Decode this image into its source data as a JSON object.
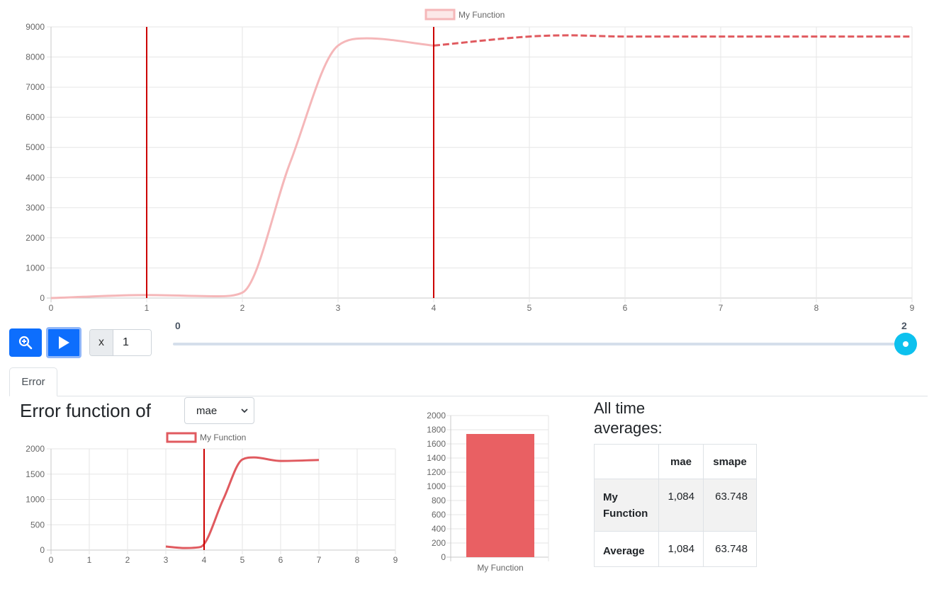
{
  "main_chart": {
    "legend": "My Function",
    "y_ticks": [
      "0",
      "1000",
      "2000",
      "3000",
      "4000",
      "5000",
      "6000",
      "7000",
      "8000",
      "9000"
    ],
    "x_ticks": [
      "0",
      "1",
      "2",
      "3",
      "4",
      "5",
      "6",
      "7",
      "8",
      "9"
    ],
    "colors": {
      "line": "#f5b7b9",
      "forecast": "#e05a5f",
      "marker": "#cc0000",
      "grid": "#e6e6e6"
    }
  },
  "controls": {
    "zoom_icon": "zoom-in-icon",
    "play_icon": "play-icon",
    "x_label": "x",
    "x_value": "1",
    "slider_min": "0",
    "slider_max": "2",
    "slider_value": 2
  },
  "tabs": [
    {
      "label": "Error",
      "active": true
    }
  ],
  "error_section": {
    "title": "Error function of",
    "select_value": "mae",
    "select_options": [
      "mae"
    ]
  },
  "error_chart": {
    "legend": "My Function",
    "y_ticks": [
      "0",
      "500",
      "1000",
      "1500",
      "2000"
    ],
    "x_ticks": [
      "0",
      "1",
      "2",
      "3",
      "4",
      "5",
      "6",
      "7",
      "8",
      "9"
    ]
  },
  "bar_chart": {
    "y_ticks": [
      "0",
      "200",
      "400",
      "600",
      "800",
      "1000",
      "1200",
      "1400",
      "1600",
      "1800",
      "2000"
    ],
    "category": "My Function"
  },
  "averages": {
    "title": "All time averages:",
    "headers": [
      "",
      "mae",
      "smape"
    ],
    "rows": [
      {
        "name": "My Function",
        "mae": "1,084",
        "smape": "63.748"
      },
      {
        "name": "Average",
        "mae": "1,084",
        "smape": "63.748"
      }
    ]
  },
  "chart_data": [
    {
      "type": "line",
      "title": "",
      "xlabel": "",
      "ylabel": "",
      "xlim": [
        0,
        9
      ],
      "ylim": [
        0,
        9000
      ],
      "grid": true,
      "legend_position": "top",
      "vertical_markers": [
        1,
        4
      ],
      "series": [
        {
          "name": "My Function",
          "style": "solid",
          "x": [
            0,
            1,
            1.75,
            2,
            2.5,
            3,
            3.3,
            4
          ],
          "y": [
            0,
            100,
            60,
            180,
            4500,
            8380,
            8620,
            8380
          ]
        },
        {
          "name": "My Function",
          "style": "dashed",
          "x": [
            4,
            5,
            5.4,
            6,
            7,
            8,
            9
          ],
          "y": [
            8380,
            8680,
            8720,
            8680,
            8680,
            8680,
            8680
          ]
        }
      ]
    },
    {
      "type": "line",
      "title": "",
      "xlabel": "",
      "ylabel": "",
      "xlim": [
        0,
        9
      ],
      "ylim": [
        0,
        2000
      ],
      "grid": true,
      "legend_position": "top",
      "vertical_markers": [
        4
      ],
      "series": [
        {
          "name": "My Function",
          "x": [
            3,
            3.5,
            3.9,
            4.5,
            5,
            5.3,
            6,
            7
          ],
          "y": [
            70,
            40,
            60,
            1000,
            1790,
            1830,
            1760,
            1780
          ]
        }
      ]
    },
    {
      "type": "bar",
      "categories": [
        "My Function"
      ],
      "values": [
        1740
      ],
      "ylim": [
        0,
        2000
      ],
      "grid": true
    }
  ]
}
